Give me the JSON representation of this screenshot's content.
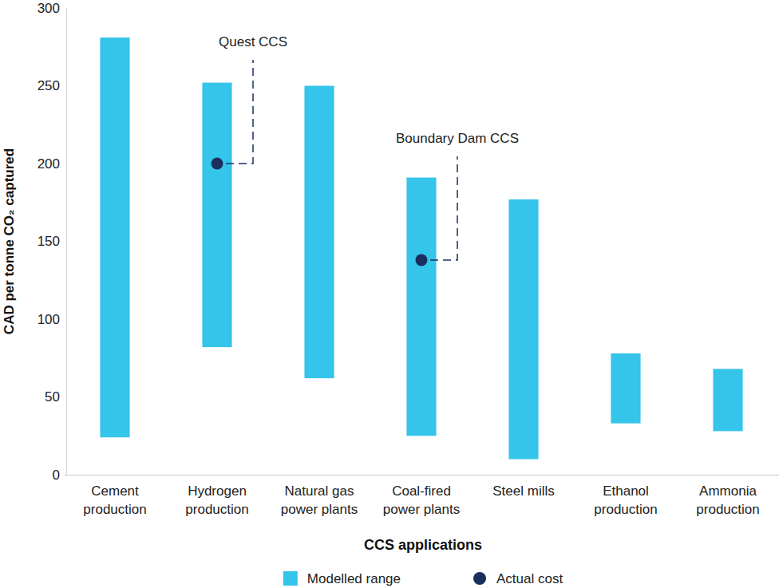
{
  "chart_data": {
    "type": "range",
    "categories": [
      "Cement\nproduction",
      "Hydrogen\nproduction",
      "Natural gas\npower plants",
      "Coal-fired\npower plants",
      "Steel mills",
      "Ethanol\nproduction",
      "Ammonia\nproduction"
    ],
    "series": [
      {
        "name": "Modelled range",
        "type": "range",
        "color": "#35c4ea",
        "low": [
          24,
          82,
          62,
          25,
          10,
          33,
          28
        ],
        "high": [
          281,
          252,
          250,
          191,
          177,
          78,
          68
        ]
      },
      {
        "name": "Actual cost",
        "type": "scatter",
        "marker": "circle",
        "color": "#1b2f5e",
        "values": [
          null,
          200,
          null,
          138,
          null,
          null,
          null
        ]
      }
    ],
    "annotations": [
      {
        "text": "Quest CCS",
        "x": "Hydrogen\nproduction",
        "y": 200
      },
      {
        "text": "Boundary Dam CCS",
        "x": "Coal-fired\npower plants",
        "y": 138
      }
    ],
    "x_label": "CCS applications",
    "y_label": "CAD per tonne CO₂ captured",
    "ylim": [
      0,
      300
    ],
    "yticks": [
      0,
      50,
      100,
      150,
      200,
      250,
      300
    ],
    "grid": false,
    "legend": "bottom"
  }
}
